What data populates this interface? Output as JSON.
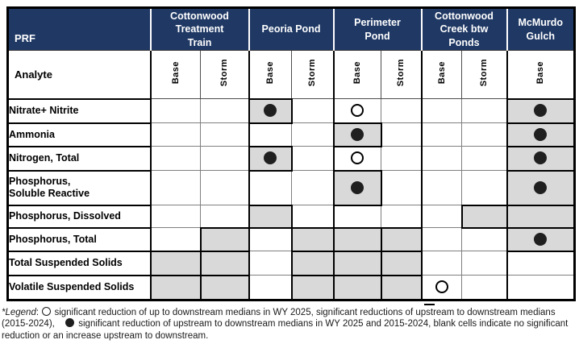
{
  "colors": {
    "header_navy": "#1F3864",
    "shaded_cell": "#D9D9D9",
    "circle_fill": "#1F1F1F",
    "grid_line": "#7F7F7F"
  },
  "chart_data": {
    "type": "table",
    "corner_label": "PRF",
    "row_header_label": "Analyte",
    "column_groups": [
      {
        "label": "Cottonwood\nTreatment\nTrain",
        "sub": [
          "Base",
          "Storm"
        ]
      },
      {
        "label": "Peoria Pond",
        "sub": [
          "Base",
          "Storm"
        ]
      },
      {
        "label": "Perimeter\nPond",
        "sub": [
          "Base",
          "Storm"
        ]
      },
      {
        "label": "Cottonwood\nCreek btw\nPonds",
        "sub": [
          "Base",
          "Storm"
        ]
      },
      {
        "label": "McMurdo\nGulch",
        "sub": [
          "Base"
        ]
      }
    ],
    "cell_states": [
      "blank",
      "shaded",
      "open-circle",
      "shaded-filled-circle"
    ],
    "rows": [
      {
        "label": "Nitrate+ Nitrite",
        "cells": [
          "blank",
          "blank",
          "shaded-filled-circle",
          "blank",
          "open-circle",
          "blank",
          "blank",
          "blank",
          "shaded-filled-circle"
        ]
      },
      {
        "label": "Ammonia",
        "cells": [
          "blank",
          "blank",
          "blank",
          "blank",
          "shaded-filled-circle",
          "blank",
          "blank",
          "blank",
          "shaded-filled-circle"
        ]
      },
      {
        "label": "Nitrogen, Total",
        "cells": [
          "blank",
          "blank",
          "shaded-filled-circle",
          "blank",
          "open-circle",
          "blank",
          "blank",
          "blank",
          "shaded-filled-circle"
        ]
      },
      {
        "label": "Phosphorus,\nSoluble Reactive",
        "cells": [
          "blank",
          "blank",
          "blank",
          "blank",
          "shaded-filled-circle",
          "blank",
          "blank",
          "blank",
          "shaded-filled-circle"
        ]
      },
      {
        "label": "Phosphorus, Dissolved",
        "cells": [
          "blank",
          "blank",
          "shaded",
          "blank",
          "blank",
          "blank",
          "blank",
          "shaded",
          "shaded"
        ]
      },
      {
        "label": "Phosphorus, Total",
        "cells": [
          "blank",
          "shaded",
          "blank",
          "shaded",
          "shaded",
          "shaded",
          "blank",
          "blank",
          "shaded-filled-circle"
        ]
      },
      {
        "label": "Total Suspended Solids",
        "cells": [
          "shaded",
          "shaded",
          "blank",
          "shaded",
          "shaded",
          "shaded",
          "blank",
          "blank",
          "blank"
        ]
      },
      {
        "label": "Volatile Suspended Solids",
        "cells": [
          "shaded",
          "shaded",
          "blank",
          "shaded",
          "shaded",
          "shaded",
          "open-circle",
          "blank",
          "blank"
        ]
      }
    ]
  },
  "legend": {
    "label": "*Legend",
    "colon": ": ",
    "line1_after_open": "significant reduction of up to downstream medians in WY 2025, significant reductions of upstream to downstream medians",
    "line2_before_filled": "(2015-2024), ",
    "line2_after_filled": "significant reduction of upstream to downstream medians in WY 2025 and 2015-2024, blank cells indicate no significant",
    "line3": "reduction or an increase  upstream to downstream."
  }
}
